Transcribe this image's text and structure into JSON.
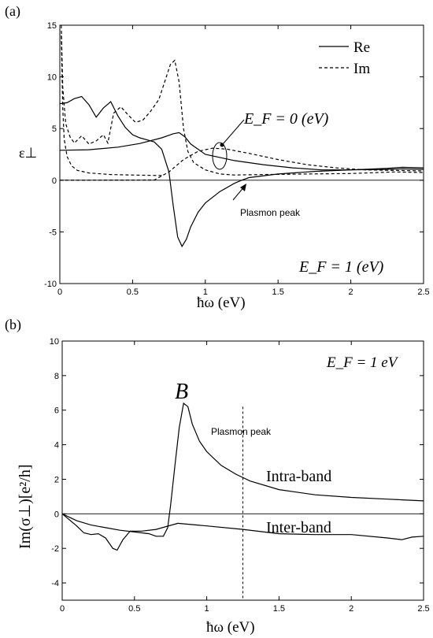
{
  "chart_data": [
    {
      "type": "line",
      "panel_label": "(a)",
      "xlabel": "ħω (eV)",
      "ylabel": "ε⊥",
      "xlim": [
        0,
        2.5
      ],
      "ylim": [
        -10,
        15
      ],
      "x_ticks": [
        "0",
        "0.5",
        "1",
        "1.5",
        "2",
        "2.5"
      ],
      "y_ticks": [
        "-10",
        "-5",
        "0",
        "5",
        "10",
        "15"
      ],
      "legend": {
        "placement": "top-right",
        "entries": [
          {
            "label": "Re",
            "style": "solid"
          },
          {
            "label": "Im",
            "style": "dashed"
          }
        ]
      },
      "annotations": {
        "ef0": "E_F = 0 (eV)",
        "ef1": "E_F = 1 (eV)",
        "plasmon": "Plasmon peak"
      },
      "series": [
        {
          "legend": "Re",
          "style": "solid",
          "group": "E_F=1",
          "points": [
            [
              0,
              7.4
            ],
            [
              0.05,
              7.5
            ],
            [
              0.1,
              7.9
            ],
            [
              0.15,
              8.1
            ],
            [
              0.2,
              7.3
            ],
            [
              0.25,
              6.1
            ],
            [
              0.3,
              7.0
            ],
            [
              0.35,
              7.6
            ],
            [
              0.4,
              6.2
            ],
            [
              0.45,
              5.1
            ],
            [
              0.5,
              4.4
            ],
            [
              0.55,
              4.1
            ],
            [
              0.6,
              3.9
            ],
            [
              0.65,
              3.7
            ],
            [
              0.7,
              3.0
            ],
            [
              0.75,
              0.8
            ],
            [
              0.78,
              -2.5
            ],
            [
              0.81,
              -5.5
            ],
            [
              0.84,
              -6.4
            ],
            [
              0.87,
              -5.7
            ],
            [
              0.9,
              -4.5
            ],
            [
              0.95,
              -3.1
            ],
            [
              1.0,
              -2.2
            ],
            [
              1.1,
              -1.1
            ],
            [
              1.2,
              -0.3
            ],
            [
              1.25,
              0.0
            ],
            [
              1.3,
              0.25
            ],
            [
              1.5,
              0.6
            ],
            [
              1.75,
              0.85
            ],
            [
              2.0,
              1.0
            ],
            [
              2.25,
              1.15
            ],
            [
              2.35,
              1.25
            ],
            [
              2.5,
              1.2
            ]
          ]
        },
        {
          "legend": "Im",
          "style": "dashed",
          "group": "E_F=1",
          "points": [
            [
              0.01,
              15
            ],
            [
              0.02,
              9.0
            ],
            [
              0.04,
              5.5
            ],
            [
              0.07,
              4.2
            ],
            [
              0.1,
              3.6
            ],
            [
              0.15,
              4.3
            ],
            [
              0.2,
              3.5
            ],
            [
              0.25,
              3.8
            ],
            [
              0.3,
              4.4
            ],
            [
              0.33,
              3.6
            ],
            [
              0.37,
              6.5
            ],
            [
              0.42,
              7.1
            ],
            [
              0.47,
              6.3
            ],
            [
              0.52,
              5.6
            ],
            [
              0.57,
              5.8
            ],
            [
              0.62,
              6.6
            ],
            [
              0.68,
              7.8
            ],
            [
              0.72,
              9.5
            ],
            [
              0.76,
              11.2
            ],
            [
              0.79,
              11.6
            ],
            [
              0.82,
              9.5
            ],
            [
              0.85,
              5.0
            ],
            [
              0.88,
              2.8
            ],
            [
              0.92,
              1.7
            ],
            [
              1.0,
              1.0
            ],
            [
              1.1,
              0.6
            ],
            [
              1.2,
              0.5
            ],
            [
              1.4,
              0.55
            ],
            [
              1.7,
              0.6
            ],
            [
              2.0,
              0.65
            ],
            [
              2.3,
              0.8
            ],
            [
              2.5,
              0.75
            ]
          ]
        },
        {
          "legend": "Re",
          "style": "solid",
          "group": "E_F=0",
          "points": [
            [
              0,
              2.9
            ],
            [
              0.2,
              2.95
            ],
            [
              0.4,
              3.2
            ],
            [
              0.55,
              3.55
            ],
            [
              0.7,
              4.1
            ],
            [
              0.78,
              4.5
            ],
            [
              0.82,
              4.6
            ],
            [
              0.86,
              4.2
            ],
            [
              0.9,
              3.5
            ],
            [
              1.0,
              2.5
            ],
            [
              1.2,
              1.9
            ],
            [
              1.4,
              1.5
            ],
            [
              1.6,
              1.2
            ],
            [
              1.8,
              1.0
            ],
            [
              2.0,
              1.0
            ],
            [
              2.25,
              1.05
            ],
            [
              2.35,
              1.1
            ],
            [
              2.5,
              1.05
            ]
          ]
        },
        {
          "legend": "Im",
          "style": "dashed",
          "group": "E_F=0",
          "points": [
            [
              0,
              0
            ],
            [
              0.65,
              0.02
            ],
            [
              0.75,
              0.8
            ],
            [
              0.85,
              2.0
            ],
            [
              0.95,
              2.8
            ],
            [
              1.05,
              3.1
            ],
            [
              1.15,
              3.0
            ],
            [
              1.3,
              2.6
            ],
            [
              1.5,
              2.0
            ],
            [
              1.7,
              1.5
            ],
            [
              1.9,
              1.2
            ],
            [
              2.1,
              1.0
            ],
            [
              2.3,
              0.95
            ],
            [
              2.5,
              0.9
            ]
          ]
        },
        {
          "legend": "Im",
          "style": "dashed",
          "group": "tail",
          "points": [
            [
              0.01,
              14.0
            ],
            [
              0.02,
              7.0
            ],
            [
              0.03,
              4.0
            ],
            [
              0.05,
              2.3
            ],
            [
              0.08,
              1.4
            ],
            [
              0.12,
              0.95
            ],
            [
              0.2,
              0.7
            ],
            [
              0.35,
              0.55
            ],
            [
              0.5,
              0.5
            ],
            [
              0.7,
              0.45
            ]
          ]
        }
      ]
    },
    {
      "type": "line",
      "panel_label": "(b)",
      "xlabel": "ħω (eV)",
      "ylabel": "Im(σ⊥)[e²/h]",
      "xlim": [
        0,
        2.5
      ],
      "ylim": [
        -5,
        10
      ],
      "x_ticks": [
        "0",
        "0.5",
        "1",
        "1.5",
        "2",
        "2.5"
      ],
      "y_ticks": [
        "-4",
        "-2",
        "0",
        "2",
        "4",
        "6",
        "8",
        "10"
      ],
      "annotations": {
        "ef": "E_F = 1 eV",
        "peak_label": "B",
        "plasmon": "Plasmon peak",
        "plasmon_x": 1.25,
        "intra": "Intra-band",
        "inter": "Inter-band"
      },
      "series": [
        {
          "name": "Intra-band",
          "style": "solid",
          "points": [
            [
              0,
              0
            ],
            [
              0.1,
              -0.4
            ],
            [
              0.2,
              -0.65
            ],
            [
              0.3,
              -0.8
            ],
            [
              0.4,
              -0.95
            ],
            [
              0.5,
              -1.05
            ],
            [
              0.6,
              -1.15
            ],
            [
              0.65,
              -1.3
            ],
            [
              0.7,
              -1.3
            ],
            [
              0.73,
              -0.8
            ],
            [
              0.75,
              0.5
            ],
            [
              0.78,
              2.8
            ],
            [
              0.81,
              5.0
            ],
            [
              0.84,
              6.4
            ],
            [
              0.87,
              6.2
            ],
            [
              0.9,
              5.2
            ],
            [
              0.95,
              4.2
            ],
            [
              1.0,
              3.6
            ],
            [
              1.1,
              2.8
            ],
            [
              1.2,
              2.3
            ],
            [
              1.3,
              1.9
            ],
            [
              1.5,
              1.4
            ],
            [
              1.75,
              1.1
            ],
            [
              2.0,
              0.95
            ],
            [
              2.25,
              0.85
            ],
            [
              2.5,
              0.75
            ]
          ]
        },
        {
          "name": "Inter-band",
          "style": "solid",
          "points": [
            [
              0,
              0
            ],
            [
              0.1,
              -0.7
            ],
            [
              0.15,
              -1.1
            ],
            [
              0.2,
              -1.2
            ],
            [
              0.25,
              -1.15
            ],
            [
              0.3,
              -1.4
            ],
            [
              0.35,
              -2.0
            ],
            [
              0.38,
              -2.1
            ],
            [
              0.42,
              -1.5
            ],
            [
              0.47,
              -1.0
            ],
            [
              0.55,
              -1.0
            ],
            [
              0.65,
              -0.9
            ],
            [
              0.8,
              -0.55
            ],
            [
              1.0,
              -0.7
            ],
            [
              1.25,
              -0.9
            ],
            [
              1.5,
              -1.15
            ],
            [
              1.75,
              -1.2
            ],
            [
              2.0,
              -1.2
            ],
            [
              2.25,
              -1.4
            ],
            [
              2.35,
              -1.5
            ],
            [
              2.42,
              -1.35
            ],
            [
              2.5,
              -1.3
            ]
          ]
        }
      ]
    }
  ]
}
